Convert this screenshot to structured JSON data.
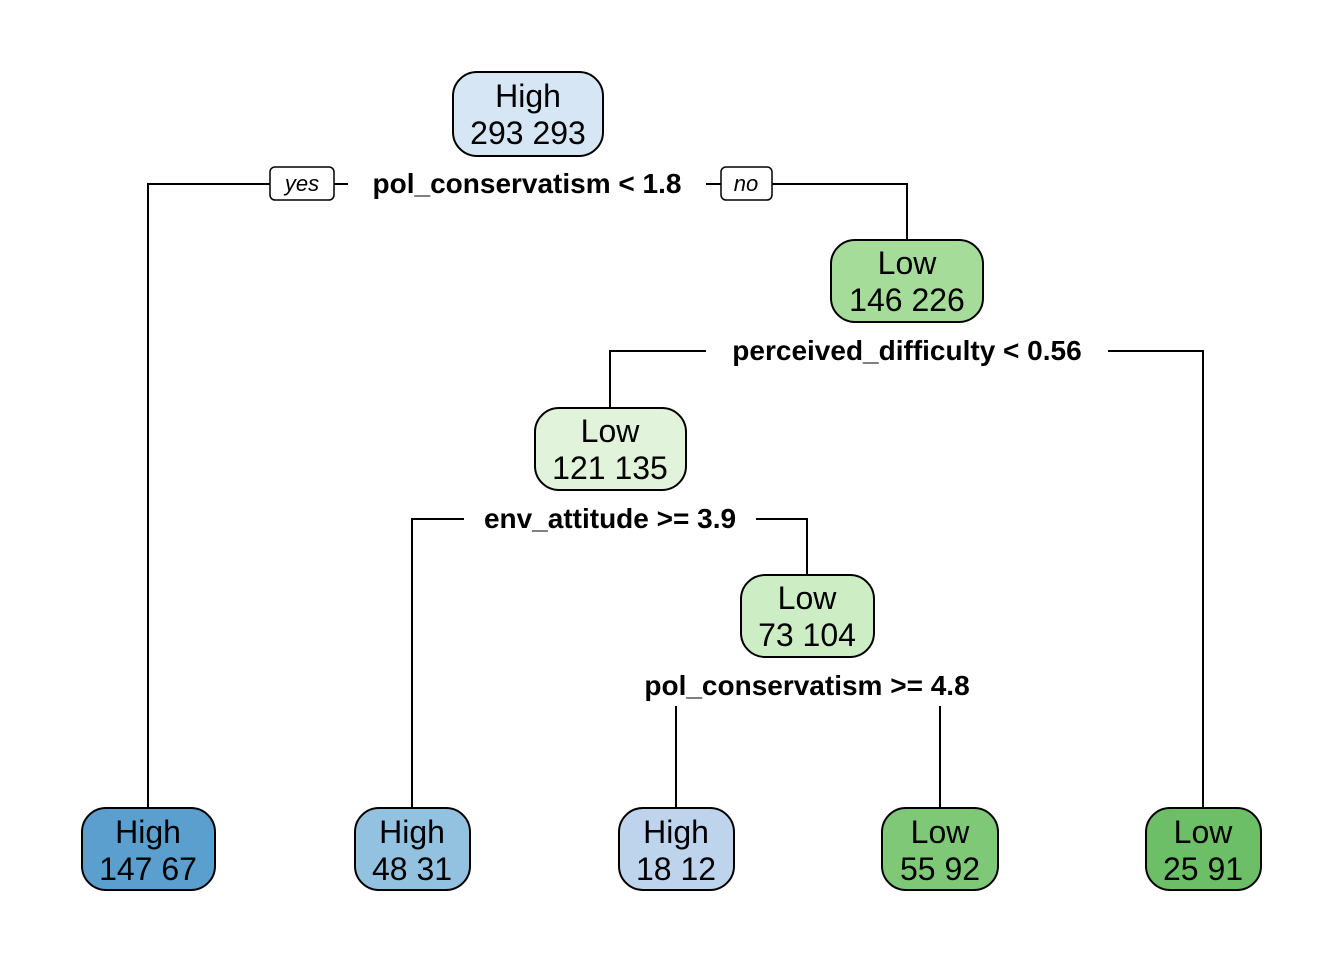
{
  "tree": {
    "branch_tags": {
      "yes": "yes",
      "no": "no"
    },
    "nodes": [
      {
        "id": "root",
        "class": "High",
        "counts": "293  293",
        "fill": "#d6e6f5"
      },
      {
        "id": "n_low1",
        "class": "Low",
        "counts": "146  226",
        "fill": "#a6dc9a"
      },
      {
        "id": "n_low2",
        "class": "Low",
        "counts": "121  135",
        "fill": "#e1f3da"
      },
      {
        "id": "n_low3",
        "class": "Low",
        "counts": "73  104",
        "fill": "#cdeec4"
      },
      {
        "id": "leaf1",
        "class": "High",
        "counts": "147  67",
        "fill": "#5b9fcf"
      },
      {
        "id": "leaf2",
        "class": "High",
        "counts": "48  31",
        "fill": "#93c2e0"
      },
      {
        "id": "leaf3",
        "class": "High",
        "counts": "18  12",
        "fill": "#bed4ec"
      },
      {
        "id": "leaf4",
        "class": "Low",
        "counts": "55  92",
        "fill": "#7ec878"
      },
      {
        "id": "leaf5",
        "class": "Low",
        "counts": "25  91",
        "fill": "#6cbf67"
      }
    ],
    "splits": [
      {
        "id": "s1",
        "label": "pol_conservatism < 1.8"
      },
      {
        "id": "s2",
        "label": "perceived_difficulty < 0.56"
      },
      {
        "id": "s3",
        "label": "env_attitude >= 3.9"
      },
      {
        "id": "s4",
        "label": "pol_conservatism >= 4.8"
      }
    ]
  }
}
